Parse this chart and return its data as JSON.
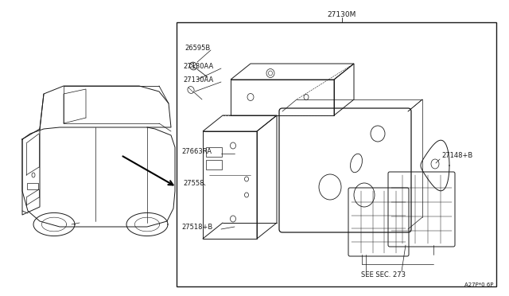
{
  "bg_color": "#ffffff",
  "line_color": "#1a1a1a",
  "text_color": "#1a1a1a",
  "title": "27130M",
  "footnote": "A27P*0 6P",
  "label_26595B": "26595B",
  "label_27130AA_1": "27130AA",
  "label_27130AA_2": "27130AA",
  "label_27663RA": "27663RA",
  "label_27558": "27558",
  "label_27518B": "27518+B",
  "label_27148B": "27148+B",
  "label_seesec": "SEE SEC. 273",
  "fs_label": 6.0,
  "fs_title": 6.5,
  "fs_foot": 5.0
}
